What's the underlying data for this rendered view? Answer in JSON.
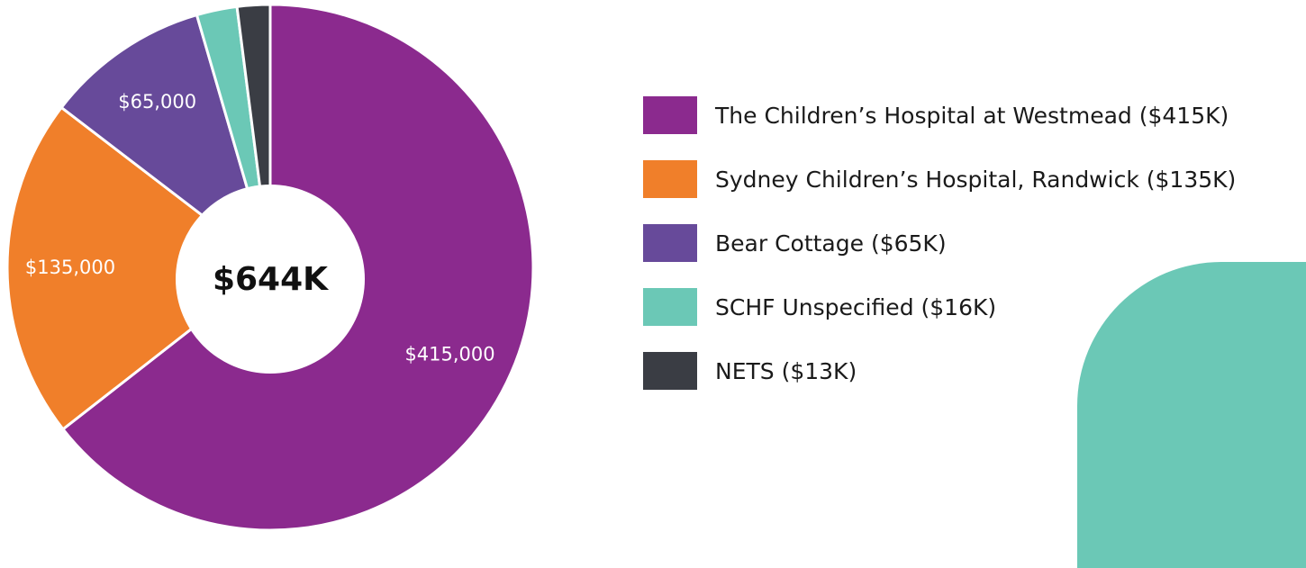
{
  "chart_data": {
    "type": "pie",
    "total_label": "$644K",
    "slices": [
      {
        "name": "The Children’s Hospital at Westmead",
        "value": 415000,
        "label": "$415,000",
        "legend": "The Children’s Hospital at Westmead ($415K)",
        "color": "#8B2A8E"
      },
      {
        "name": "Sydney Children’s Hospital, Randwick",
        "value": 135000,
        "label": "$135,000",
        "legend": "Sydney Children’s Hospital, Randwick ($135K)",
        "color": "#F07F2A"
      },
      {
        "name": "Bear Cottage",
        "value": 65000,
        "label": "$65,000",
        "legend": "Bear Cottage ($65K)",
        "color": "#674A9A"
      },
      {
        "name": "SCHF Unspecified",
        "value": 16000,
        "label": "",
        "legend": "SCHF Unspecified ($16K)",
        "color": "#6BC8B6"
      },
      {
        "name": "NETS",
        "value": 13000,
        "label": "",
        "legend": "NETS ($13K)",
        "color": "#3A3D44"
      }
    ],
    "legend_placement": "right"
  },
  "decoration": {
    "color": "#6BC8B6"
  }
}
